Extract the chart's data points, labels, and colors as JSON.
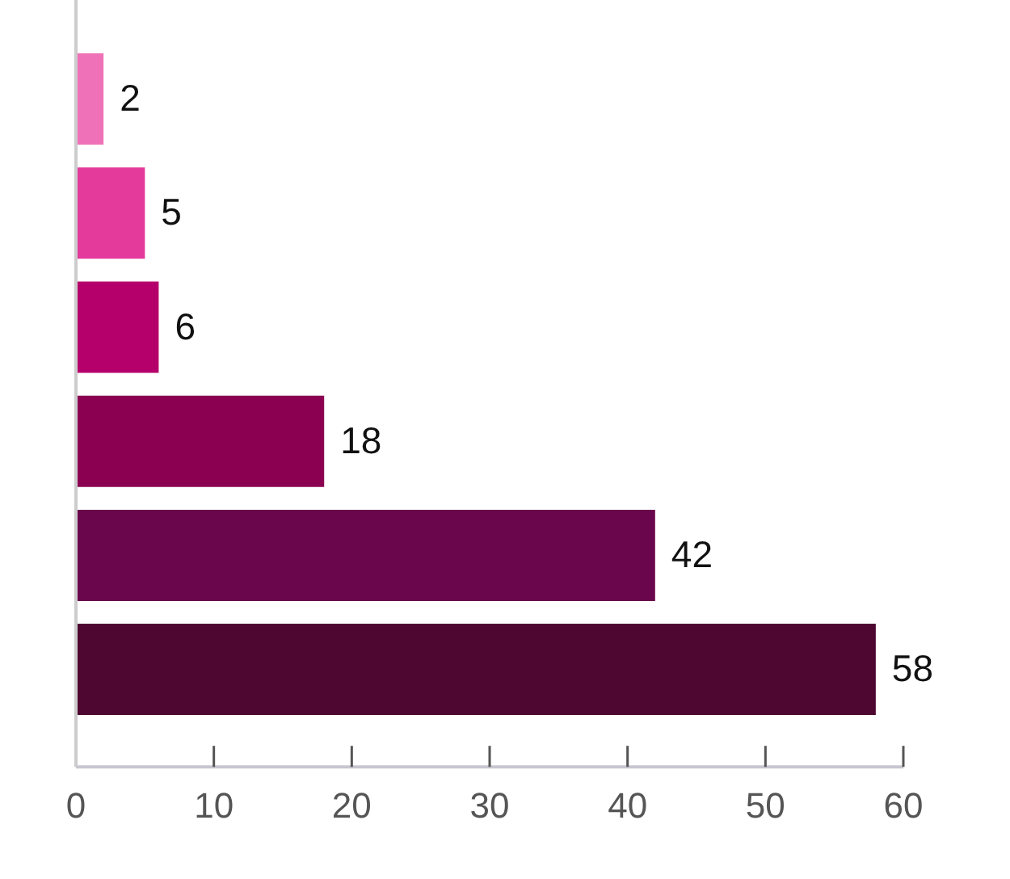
{
  "chart_data": {
    "type": "bar",
    "orientation": "horizontal",
    "categories": [
      null,
      null,
      null,
      null,
      null,
      null
    ],
    "values": [
      2,
      5,
      6,
      18,
      42,
      58
    ],
    "colors": [
      "#ef72b8",
      "#e33a9c",
      "#b5006b",
      "#8c0052",
      "#6a074c",
      "#4e0731"
    ],
    "xlim": [
      0,
      60
    ],
    "xticks": [
      0,
      10,
      20,
      30,
      40,
      50,
      60
    ],
    "data_labels": true
  }
}
